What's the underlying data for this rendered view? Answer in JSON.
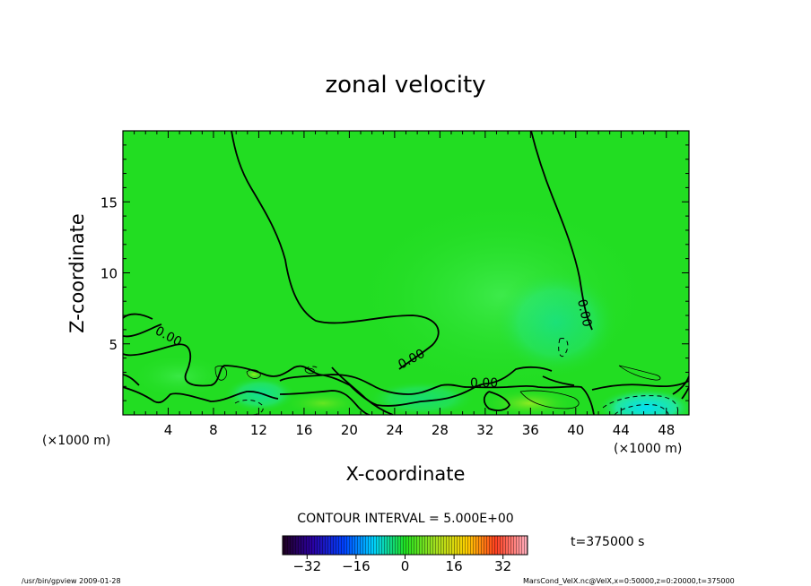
{
  "chart_data": {
    "type": "heatmap",
    "title": "zonal velocity",
    "xlabel": "X-coordinate",
    "ylabel": "Z-coordinate",
    "x_unit_left": "(×1000 m)",
    "x_unit_right": "(×1000 m)",
    "xlim": [
      0,
      50
    ],
    "ylim": [
      0,
      20
    ],
    "x_ticks": [
      4,
      8,
      12,
      16,
      20,
      24,
      28,
      32,
      36,
      40,
      44,
      48
    ],
    "y_ticks": [
      5,
      10,
      15
    ],
    "contour_interval": "CONTOUR INTERVAL = 5.000E+00",
    "contour_labels": [
      "0.00",
      "0.00",
      "0.00",
      "0.00"
    ],
    "colorbar": {
      "range": [
        -40,
        40
      ],
      "ticks": [
        -32,
        -16,
        0,
        16,
        32
      ],
      "colormap": "rainbow"
    },
    "time_label": "t=375000 s",
    "footer_left": "/usr/bin/gpview   2009-01-28",
    "footer_right": "MarsCond_VelX.nc@VelX,x=0:50000,z=0:20000,t=375000"
  },
  "colors": {
    "field_green": "#22dd22",
    "contour": "#000000"
  }
}
